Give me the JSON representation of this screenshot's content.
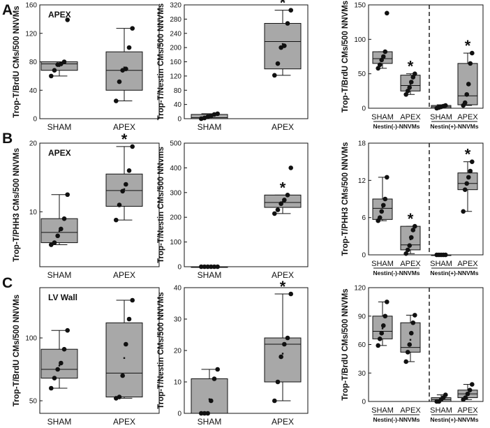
{
  "figure": {
    "panel_letters": [
      "A",
      "B",
      "C"
    ]
  },
  "colors": {
    "box_fill": "#a8a8a8",
    "ink": "#111111"
  },
  "chart_data": [
    {
      "id": "A1",
      "type": "box",
      "row": "A",
      "col": 1,
      "ylabel": "Trop-T/BrdU CMs/500 NNVMs",
      "inset_label": "APEX",
      "ylim": [
        0,
        160
      ],
      "yticks": [
        0,
        40,
        80,
        120,
        160
      ],
      "show_zero_tick": false,
      "categories": [
        "SHAM",
        "APEX"
      ],
      "boxes": [
        {
          "q1": 68,
          "median": 77,
          "q3": 80,
          "whisker_low": 60,
          "whisker_high": 80,
          "mean": 74,
          "points": [
            60,
            68,
            76,
            77,
            80,
            139
          ],
          "sig": false
        },
        {
          "q1": 40,
          "median": 68,
          "q3": 94,
          "whisker_low": 25,
          "whisker_high": 127,
          "mean": 72,
          "points": [
            25,
            52,
            68,
            70,
            100,
            127
          ],
          "sig": false
        }
      ],
      "group_labels": []
    },
    {
      "id": "A2",
      "type": "box",
      "row": "A",
      "col": 2,
      "ylabel": "Trop-T/Nestin CMs/500 NNVMs",
      "inset_label": "",
      "ylim": [
        0,
        320
      ],
      "yticks": [
        0,
        40,
        80,
        120,
        160,
        200,
        240,
        280,
        320
      ],
      "show_zero_tick": true,
      "categories": [
        "SHAM",
        "APEX"
      ],
      "boxes": [
        {
          "q1": 0,
          "median": 3,
          "q3": 12,
          "whisker_low": 0,
          "whisker_high": 14,
          "mean": 5,
          "points": [
            0,
            2,
            5,
            8,
            12,
            14
          ],
          "sig": false
        },
        {
          "q1": 140,
          "median": 217,
          "q3": 268,
          "whisker_low": 122,
          "whisker_high": 305,
          "mean": 210,
          "points": [
            122,
            155,
            200,
            205,
            268,
            305
          ],
          "sig": true
        }
      ],
      "group_labels": []
    },
    {
      "id": "A3",
      "type": "box",
      "row": "A",
      "col": 3,
      "ylabel": "Trop-T/BrdU CMs/500 NNVMs",
      "inset_label": "",
      "ylim": [
        0,
        150
      ],
      "yticks": [
        0,
        50,
        100,
        150
      ],
      "show_zero_tick": true,
      "categories": [
        "SHAM",
        "APEX",
        "SHAM",
        "APEX"
      ],
      "boxes": [
        {
          "q1": 65,
          "median": 72,
          "q3": 82,
          "whisker_low": 58,
          "whisker_high": 82,
          "mean": 73,
          "points": [
            58,
            63,
            70,
            75,
            82,
            138
          ],
          "sig": false
        },
        {
          "q1": 25,
          "median": 33,
          "q3": 48,
          "whisker_low": 20,
          "whisker_high": 50,
          "mean": 35,
          "points": [
            20,
            25,
            30,
            38,
            45,
            50
          ],
          "sig": true
        },
        {
          "q1": 0,
          "median": 2,
          "q3": 4,
          "whisker_low": 0,
          "whisker_high": 5,
          "mean": 2,
          "points": [
            0,
            1,
            2,
            3,
            4
          ],
          "sig": false
        },
        {
          "q1": 5,
          "median": 18,
          "q3": 65,
          "whisker_low": 4,
          "whisker_high": 80,
          "mean": 36,
          "points": [
            4,
            8,
            20,
            35,
            65,
            80
          ],
          "sig": true
        }
      ],
      "group_labels": [
        "Nestin(-)-NNVMs",
        "Nestin(+)-NNVMs"
      ]
    },
    {
      "id": "B1",
      "type": "box",
      "row": "B",
      "col": 1,
      "ylabel": "Trop-T/PHH3 CMs/500 NNVMs",
      "inset_label": "APEX",
      "ylim": [
        2,
        20
      ],
      "yticks": [
        10,
        20
      ],
      "show_zero_tick": false,
      "categories": [
        "SHAM",
        "APEX"
      ],
      "boxes": [
        {
          "q1": 5.5,
          "median": 7,
          "q3": 9,
          "whisker_low": 5.2,
          "whisker_high": 12.5,
          "mean": 7.2,
          "points": [
            5.2,
            5.5,
            6.5,
            7.5,
            9,
            12.5
          ],
          "sig": false
        },
        {
          "q1": 10.8,
          "median": 13.1,
          "q3": 15.5,
          "whisker_low": 8.8,
          "whisker_high": 19.5,
          "mean": 13.3,
          "points": [
            8.8,
            11,
            13,
            14,
            16,
            19.5
          ],
          "sig": true
        }
      ],
      "group_labels": []
    },
    {
      "id": "B2",
      "type": "box",
      "row": "B",
      "col": 2,
      "ylabel": "Trop-T/Nestin CMs/500 NNvms",
      "inset_label": "",
      "ylim": [
        0,
        500
      ],
      "yticks": [
        0,
        100,
        200,
        300,
        400,
        500
      ],
      "show_zero_tick": true,
      "categories": [
        "SHAM",
        "APEX"
      ],
      "boxes": [
        {
          "q1": 0,
          "median": 0,
          "q3": 0,
          "whisker_low": 0,
          "whisker_high": 0,
          "mean": 0,
          "points": [
            0,
            0,
            0,
            0,
            0,
            0
          ],
          "sig": false
        },
        {
          "q1": 240,
          "median": 260,
          "q3": 290,
          "whisker_low": 215,
          "whisker_high": 290,
          "mean": 262,
          "points": [
            215,
            230,
            255,
            270,
            290,
            400
          ],
          "sig": true
        }
      ],
      "group_labels": []
    },
    {
      "id": "B3",
      "type": "box",
      "row": "B",
      "col": 3,
      "ylabel": "Trop-T/PHH3 CMs/500 NNVMs",
      "inset_label": "",
      "ylim": [
        0,
        18
      ],
      "yticks": [
        0,
        6,
        12,
        18
      ],
      "show_zero_tick": true,
      "categories": [
        "SHAM",
        "APEX",
        "SHAM",
        "APEX"
      ],
      "boxes": [
        {
          "q1": 5.7,
          "median": 7.5,
          "q3": 9,
          "whisker_low": 5.5,
          "whisker_high": 12.5,
          "mean": 7.7,
          "points": [
            5.5,
            6,
            7,
            8,
            9,
            12.5
          ],
          "sig": false
        },
        {
          "q1": 0.8,
          "median": 1.6,
          "q3": 4.6,
          "whisker_low": 0.2,
          "whisker_high": 4.6,
          "mean": 2.5,
          "points": [
            0.2,
            0.8,
            1.5,
            2.8,
            4,
            4.6
          ],
          "sig": true
        },
        {
          "q1": 0,
          "median": 0,
          "q3": 0,
          "whisker_low": 0,
          "whisker_high": 0,
          "mean": 0,
          "points": [
            0,
            0,
            0,
            0,
            0
          ],
          "sig": false
        },
        {
          "q1": 10.5,
          "median": 11.5,
          "q3": 13.2,
          "whisker_low": 7,
          "whisker_high": 15,
          "mean": 11.6,
          "points": [
            7,
            10.5,
            11.5,
            12.5,
            13.5,
            15
          ],
          "sig": true
        }
      ],
      "group_labels": [
        "Nestin(-)-NNVMs",
        "Nestin(+)-NNVMs"
      ]
    },
    {
      "id": "C1",
      "type": "box",
      "row": "C",
      "col": 1,
      "ylabel": "Trop-T/BrdU CMs/500 NNVMs",
      "inset_label": "LV Wall",
      "ylim": [
        40,
        140
      ],
      "yticks": [
        50,
        100
      ],
      "show_zero_tick": false,
      "categories": [
        "SHAM",
        "APEX"
      ],
      "boxes": [
        {
          "q1": 68,
          "median": 75,
          "q3": 91,
          "whisker_low": 60,
          "whisker_high": 106,
          "mean": 78,
          "points": [
            60,
            68,
            75,
            80,
            91,
            106
          ],
          "sig": false
        },
        {
          "q1": 53,
          "median": 72,
          "q3": 112,
          "whisker_low": 52,
          "whisker_high": 130,
          "mean": 84,
          "points": [
            52,
            53,
            70,
            95,
            115,
            130
          ],
          "sig": false
        }
      ],
      "group_labels": []
    },
    {
      "id": "C2",
      "type": "box",
      "row": "C",
      "col": 2,
      "ylabel": "Trop-T/Nestin CMs/500 NNVMs",
      "inset_label": "",
      "ylim": [
        0,
        40
      ],
      "yticks": [
        0,
        10,
        20,
        30,
        40
      ],
      "show_zero_tick": true,
      "categories": [
        "SHAM",
        "APEX"
      ],
      "boxes": [
        {
          "q1": 0,
          "median": 0,
          "q3": 11,
          "whisker_low": 0,
          "whisker_high": 14,
          "mean": 4.5,
          "points": [
            0,
            0,
            0,
            4,
            11,
            14
          ],
          "sig": false
        },
        {
          "q1": 10,
          "median": 22,
          "q3": 24,
          "whisker_low": 4,
          "whisker_high": 38,
          "mean": 19,
          "points": [
            4,
            10,
            18,
            22,
            24,
            38
          ],
          "sig": true
        }
      ],
      "group_labels": []
    },
    {
      "id": "C3",
      "type": "box",
      "row": "C",
      "col": 3,
      "ylabel": "Trop-T/BrdU CMs/500 NNVMs",
      "inset_label": "",
      "ylim": [
        0,
        120
      ],
      "yticks": [
        0,
        30,
        60,
        90,
        120
      ],
      "show_zero_tick": true,
      "categories": [
        "SHAM",
        "APEX",
        "SHAM",
        "APEX"
      ],
      "boxes": [
        {
          "q1": 66,
          "median": 74,
          "q3": 90,
          "whisker_low": 59,
          "whisker_high": 105,
          "mean": 77,
          "points": [
            59,
            66,
            72,
            80,
            90,
            105
          ],
          "sig": false
        },
        {
          "q1": 52,
          "median": 57,
          "q3": 83,
          "whisker_low": 42,
          "whisker_high": 91,
          "mean": 65,
          "points": [
            42,
            52,
            60,
            72,
            83,
            91
          ],
          "sig": false
        },
        {
          "q1": 0,
          "median": 2,
          "q3": 4,
          "whisker_low": 0,
          "whisker_high": 7,
          "mean": 2,
          "points": [
            0,
            0,
            2,
            4,
            7
          ],
          "sig": false
        },
        {
          "q1": 4,
          "median": 8,
          "q3": 12,
          "whisker_low": 2,
          "whisker_high": 18,
          "mean": 8,
          "points": [
            2,
            4,
            8,
            12,
            18
          ],
          "sig": false
        }
      ],
      "group_labels": [
        "Nestin(-)-NNVMs",
        "Nestin(+)-NNVMs"
      ]
    }
  ]
}
